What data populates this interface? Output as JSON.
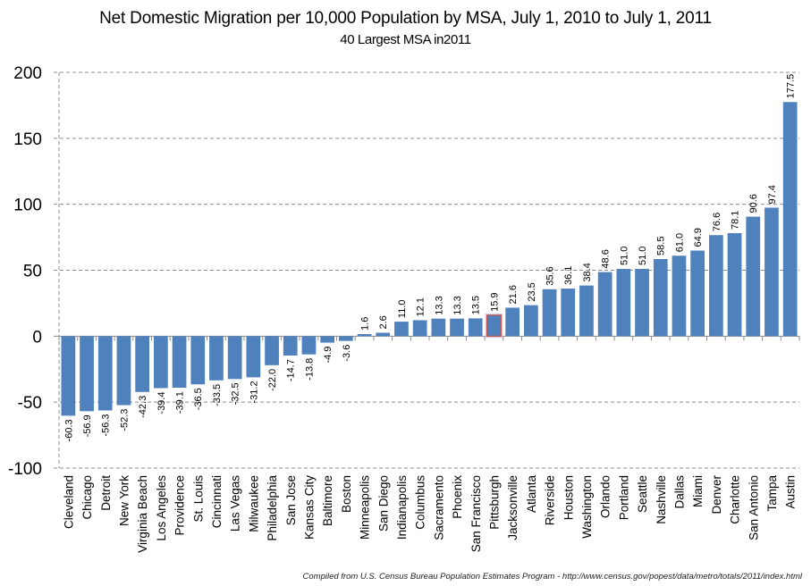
{
  "chart_data": {
    "type": "bar",
    "title": "Net Domestic Migration per 10,000 Population by MSA, July 1, 2010 to July 1, 2011",
    "subtitle": "40 Largest MSA in2011",
    "xlabel": "",
    "ylabel": "",
    "ylim": [
      -100,
      200
    ],
    "yticks": [
      200,
      150,
      100,
      50,
      0,
      -50,
      -100
    ],
    "grid": true,
    "legend": "none",
    "bar_color": "#4F81BD",
    "highlight_color": "#C0504D",
    "highlighted_category": "Pittsburgh",
    "categories": [
      "Cleveland",
      "Chicago",
      "Detroit",
      "New York",
      "Virginia Beach",
      "Los Angeles",
      "Providence",
      "St. Louis",
      "Cincinnati",
      "Las Vegas",
      "Milwaukee",
      "Philadelphia",
      "San Jose",
      "Kansas City",
      "Baltimore",
      "Boston",
      "Minneapolis",
      "San Diego",
      "Indianapolis",
      "Columbus",
      "Sacramento",
      "Phoenix",
      "San Francisco",
      "Pittsburgh",
      "Jacksonville",
      "Atlanta",
      "Riverside",
      "Houston",
      "Washington",
      "Orlando",
      "Portland",
      "Seattle",
      "Nashville",
      "Dallas",
      "Miami",
      "Denver",
      "Charlotte",
      "San Antonio",
      "Tampa",
      "Austin"
    ],
    "values": [
      -60.3,
      -56.9,
      -56.3,
      -52.3,
      -42.3,
      -39.4,
      -39.1,
      -36.5,
      -33.5,
      -32.5,
      -31.2,
      -22.0,
      -14.7,
      -13.8,
      -4.9,
      -3.6,
      1.6,
      2.6,
      11.0,
      12.1,
      13.3,
      13.3,
      13.5,
      15.9,
      21.6,
      23.5,
      35.6,
      36.1,
      38.4,
      48.6,
      51.0,
      51.0,
      58.5,
      61.0,
      64.9,
      76.6,
      78.1,
      90.6,
      97.4,
      177.5
    ],
    "data_labels": [
      "-60.3",
      "-56.9",
      "-56.3",
      "-52.3",
      "-42.3",
      "-39.4",
      "-39.1",
      "-36.5",
      "-33.5",
      "-32.5",
      "-31.2",
      "-22.0",
      "-14.7",
      "-13.8",
      "-4.9",
      "-3.6",
      "1.6",
      "2.6",
      "11.0",
      "12.1",
      "13.3",
      "13.3",
      "13.5",
      "15.9",
      "21.6",
      "23.5",
      "35.6",
      "36.1",
      "38.4",
      "48.6",
      "51.0",
      "51.0",
      "58.5",
      "61.0",
      "64.9",
      "76.6",
      "78.1",
      "90.6",
      "97.4",
      "177.5"
    ],
    "source_note": "Compiled from U.S. Census Bureau Population Estimates Program - http://www.census.gov/popest/data/metro/totals/2011/index.html"
  }
}
